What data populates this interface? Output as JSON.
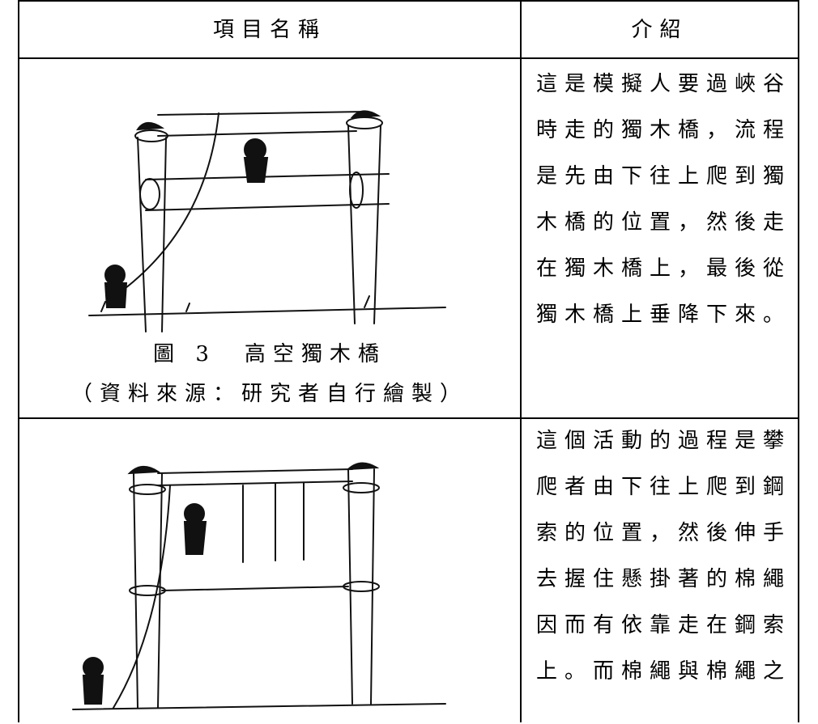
{
  "table": {
    "header": [
      "項目名稱",
      "介紹"
    ],
    "rows": [
      {
        "caption": "圖 3　高空獨木橋",
        "source": "（資料來源：研究者自行繪製）",
        "description": [
          "這是模擬人要過峽谷",
          "時走的獨木橋，流程",
          "是先由下往上爬到獨",
          "木橋的位置，然後走",
          "在獨木橋上，最後從",
          "獨木橋上垂降下來。"
        ]
      },
      {
        "description": [
          "這個活動的過程是攀",
          "爬者由下往上爬到鋼",
          "索的位置，然後伸手",
          "去握住懸掛著的棉繩",
          "因而有依靠走在鋼索",
          "上。而棉繩與棉繩之"
        ]
      }
    ]
  }
}
